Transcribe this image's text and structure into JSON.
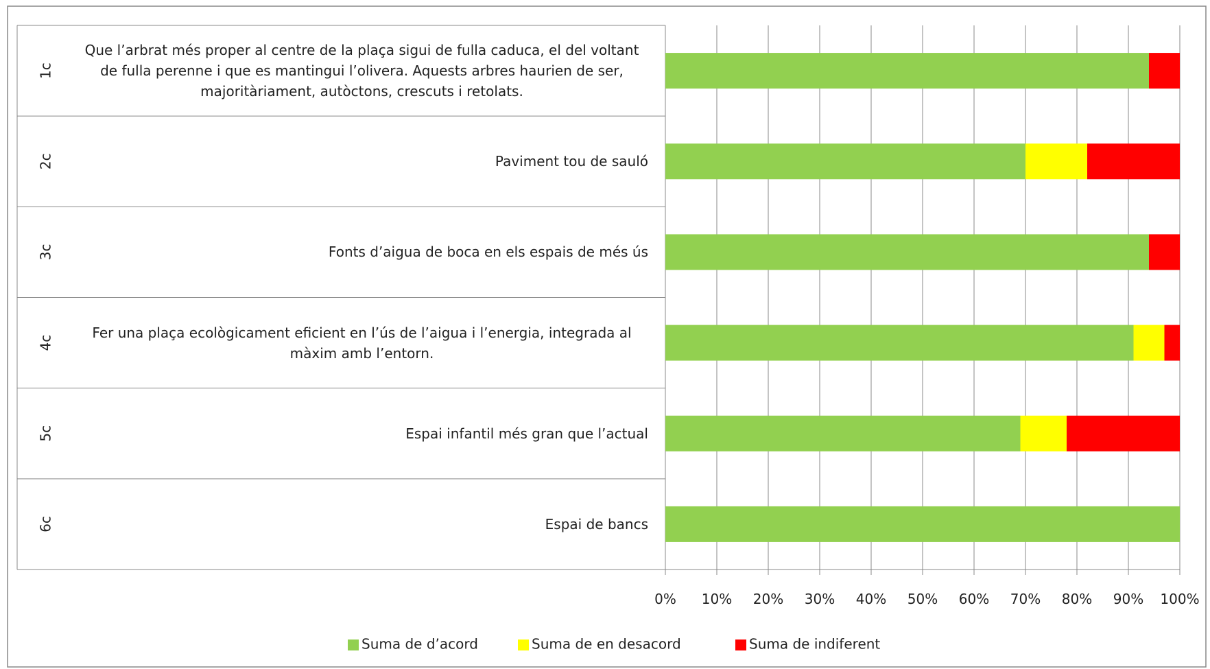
{
  "chart_data": {
    "type": "stacked-bar-horizontal",
    "codes": [
      "1c",
      "2c",
      "3c",
      "4c",
      "5c",
      "6c"
    ],
    "categories": [
      "Que l’arbrat més proper al centre de la plaça sigui de fulla caduca, el del voltant de fulla perenne i que es mantingui l’olivera. Aquests arbres haurien de ser, majoritàriament, autòctons, crescuts i retolats.",
      "Paviment tou de sauló",
      "Fonts d’aigua de boca en els espais de més ús",
      "Fer una plaça ecològicament eficient en l’ús de l’aigua i l’energia, integrada al màxim amb l’entorn.",
      "Espai infantil més gran que l’actual",
      "Espai de bancs"
    ],
    "series": [
      {
        "name": "Suma de d’acord",
        "color": "#92d050",
        "values": [
          94,
          70,
          94,
          91,
          69,
          100
        ]
      },
      {
        "name": "Suma de en desacord",
        "color": "#ffff00",
        "values": [
          0,
          12,
          0,
          6,
          9,
          0
        ]
      },
      {
        "name": "Suma de indiferent",
        "color": "#ff0000",
        "values": [
          6,
          18,
          6,
          3,
          22,
          0
        ]
      }
    ],
    "xlim": [
      0,
      100
    ],
    "xticks": [
      {
        "value": 0,
        "label": "0%"
      },
      {
        "value": 10,
        "label": "10%"
      },
      {
        "value": 20,
        "label": "20%"
      },
      {
        "value": 30,
        "label": "30%"
      },
      {
        "value": 40,
        "label": "40%"
      },
      {
        "value": 50,
        "label": "50%"
      },
      {
        "value": 60,
        "label": "60%"
      },
      {
        "value": 70,
        "label": "70%"
      },
      {
        "value": 80,
        "label": "80%"
      },
      {
        "value": 90,
        "label": "90%"
      },
      {
        "value": 100,
        "label": "100%"
      }
    ],
    "grid": true,
    "legend": "bottom"
  }
}
